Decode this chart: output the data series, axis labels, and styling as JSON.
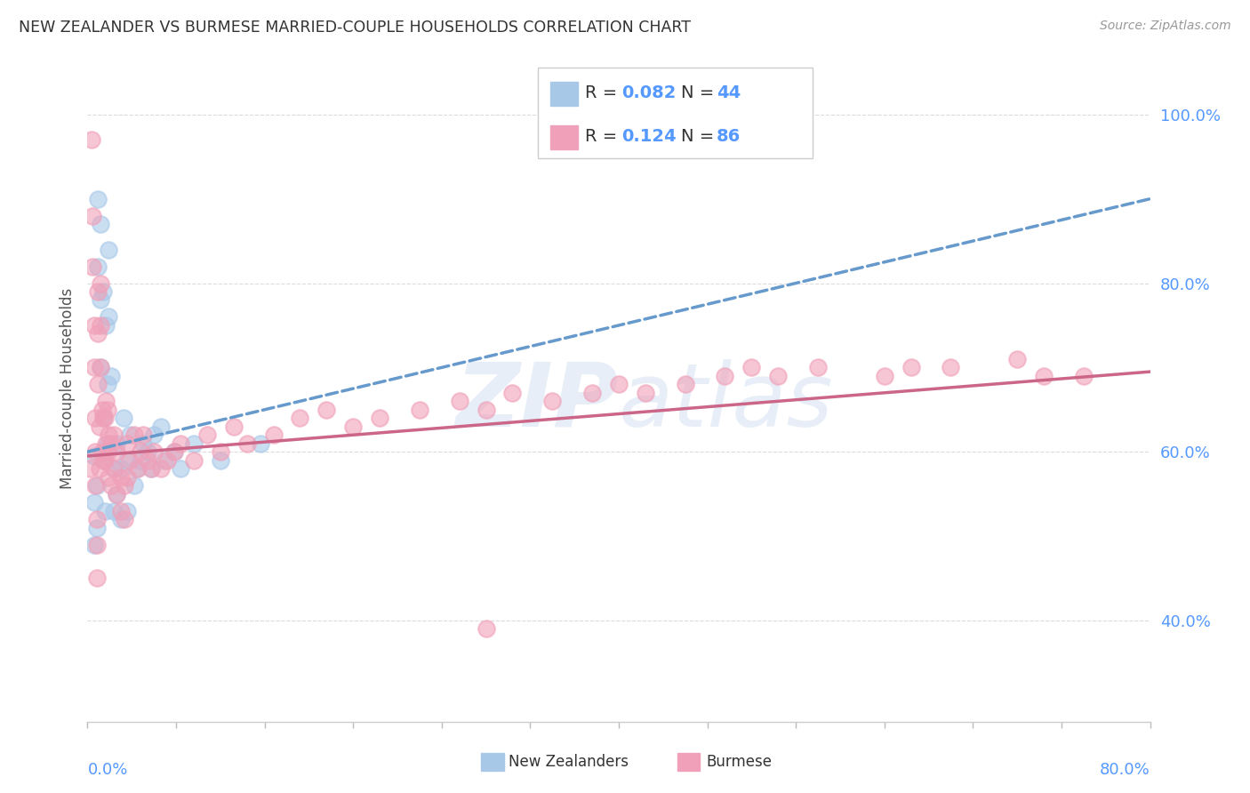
{
  "title": "NEW ZEALANDER VS BURMESE MARRIED-COUPLE HOUSEHOLDS CORRELATION CHART",
  "source": "Source: ZipAtlas.com",
  "ylabel": "Married-couple Households",
  "ytick_labels": [
    "40.0%",
    "60.0%",
    "80.0%",
    "100.0%"
  ],
  "ytick_values": [
    0.4,
    0.6,
    0.8,
    1.0
  ],
  "xlim": [
    0.0,
    0.8
  ],
  "ylim": [
    0.28,
    1.07
  ],
  "legend_r1": "R = 0.082",
  "legend_n1": "N = 44",
  "legend_r2": "R = 0.124",
  "legend_n2": "N = 86",
  "nz_color": "#a8c8e8",
  "burmese_color": "#f0a0b8",
  "nz_line_color": "#6699cc",
  "burmese_line_color": "#cc6688",
  "nz_x": [
    0.005,
    0.005,
    0.005,
    0.007,
    0.007,
    0.008,
    0.008,
    0.01,
    0.01,
    0.01,
    0.012,
    0.012,
    0.013,
    0.013,
    0.014,
    0.015,
    0.015,
    0.016,
    0.016,
    0.018,
    0.02,
    0.02,
    0.022,
    0.022,
    0.025,
    0.025,
    0.027,
    0.03,
    0.03,
    0.032,
    0.035,
    0.037,
    0.04,
    0.042,
    0.045,
    0.048,
    0.05,
    0.055,
    0.058,
    0.065,
    0.07,
    0.08,
    0.1,
    0.13
  ],
  "nz_y": [
    0.595,
    0.54,
    0.49,
    0.56,
    0.51,
    0.9,
    0.82,
    0.87,
    0.78,
    0.7,
    0.79,
    0.64,
    0.59,
    0.53,
    0.75,
    0.68,
    0.61,
    0.84,
    0.76,
    0.69,
    0.58,
    0.53,
    0.61,
    0.55,
    0.58,
    0.52,
    0.64,
    0.59,
    0.53,
    0.62,
    0.56,
    0.58,
    0.59,
    0.61,
    0.6,
    0.58,
    0.62,
    0.63,
    0.59,
    0.6,
    0.58,
    0.61,
    0.59,
    0.61
  ],
  "bu_x": [
    0.002,
    0.003,
    0.004,
    0.004,
    0.005,
    0.005,
    0.006,
    0.006,
    0.006,
    0.007,
    0.007,
    0.007,
    0.008,
    0.008,
    0.008,
    0.009,
    0.009,
    0.01,
    0.01,
    0.01,
    0.011,
    0.011,
    0.012,
    0.012,
    0.013,
    0.013,
    0.014,
    0.014,
    0.015,
    0.015,
    0.016,
    0.016,
    0.018,
    0.018,
    0.02,
    0.02,
    0.022,
    0.022,
    0.025,
    0.025,
    0.028,
    0.028,
    0.03,
    0.03,
    0.032,
    0.035,
    0.038,
    0.04,
    0.042,
    0.045,
    0.048,
    0.05,
    0.055,
    0.06,
    0.065,
    0.07,
    0.08,
    0.09,
    0.1,
    0.11,
    0.12,
    0.14,
    0.16,
    0.18,
    0.2,
    0.22,
    0.25,
    0.28,
    0.3,
    0.32,
    0.35,
    0.38,
    0.4,
    0.42,
    0.45,
    0.48,
    0.5,
    0.52,
    0.55,
    0.6,
    0.62,
    0.65,
    0.7,
    0.72,
    0.75,
    0.3
  ],
  "bu_y": [
    0.58,
    0.97,
    0.88,
    0.82,
    0.75,
    0.7,
    0.64,
    0.6,
    0.56,
    0.52,
    0.49,
    0.45,
    0.79,
    0.74,
    0.68,
    0.63,
    0.58,
    0.8,
    0.75,
    0.7,
    0.65,
    0.6,
    0.64,
    0.59,
    0.64,
    0.59,
    0.66,
    0.61,
    0.65,
    0.6,
    0.62,
    0.57,
    0.61,
    0.56,
    0.62,
    0.58,
    0.6,
    0.55,
    0.57,
    0.53,
    0.56,
    0.52,
    0.61,
    0.57,
    0.59,
    0.62,
    0.58,
    0.6,
    0.62,
    0.59,
    0.58,
    0.6,
    0.58,
    0.59,
    0.6,
    0.61,
    0.59,
    0.62,
    0.6,
    0.63,
    0.61,
    0.62,
    0.64,
    0.65,
    0.63,
    0.64,
    0.65,
    0.66,
    0.65,
    0.67,
    0.66,
    0.67,
    0.68,
    0.67,
    0.68,
    0.69,
    0.7,
    0.69,
    0.7,
    0.69,
    0.7,
    0.7,
    0.71,
    0.69,
    0.69,
    0.39
  ]
}
